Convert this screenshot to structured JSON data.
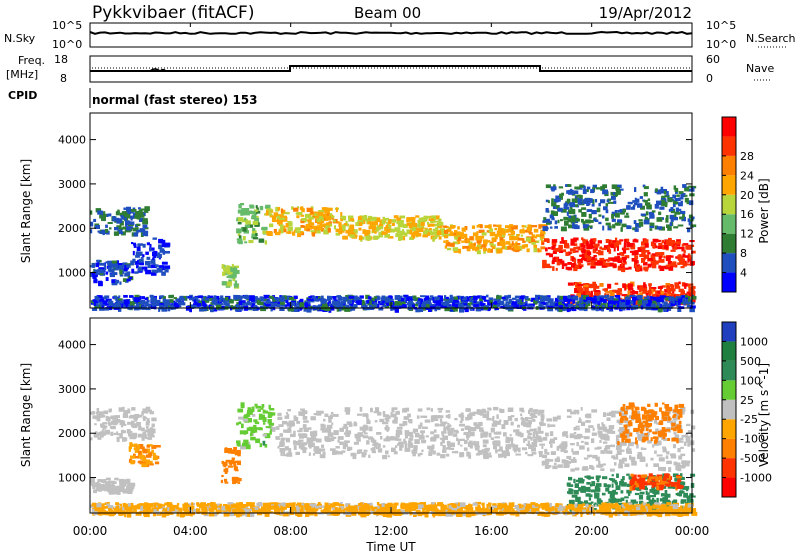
{
  "header": {
    "station": "Pykkvibaer (fitACF)",
    "beam": "Beam 00",
    "date": "19/Apr/2012"
  },
  "panels": {
    "noise": {
      "left_label": "N.Sky",
      "left_ticks": [
        "10^5",
        "10^0"
      ],
      "right_label": "N.Search",
      "right_ticks": [
        "10^5",
        "10^0"
      ]
    },
    "freq": {
      "left_label_1": "Freq.",
      "left_label_2": "[MHz]",
      "left_ticks": [
        "18",
        "8"
      ],
      "right_label": "Nave",
      "right_ticks": [
        "60",
        "0"
      ]
    },
    "cpid": {
      "label": "CPID",
      "text": "normal (fast stereo) 153"
    }
  },
  "chart_data": [
    {
      "type": "heatmap",
      "title": "",
      "xlabel": "Time UT",
      "ylabel": "Slant Range [km]",
      "x_ticks": [
        "00:00",
        "04:00",
        "08:00",
        "12:00",
        "16:00",
        "20:00",
        "00:00"
      ],
      "y_ticks": [
        "1000",
        "2000",
        "3000",
        "4000"
      ],
      "xlim": [
        0,
        24
      ],
      "ylim": [
        200,
        4600
      ],
      "colorbar": {
        "label": "Power [dB]",
        "ticks": [
          "4",
          "8",
          "12",
          "16",
          "20",
          "24",
          "28"
        ],
        "colors": [
          "#0000ff",
          "#1f4fbf",
          "#2e7d32",
          "#66bb6a",
          "#b8d63c",
          "#ffa500",
          "#ff7f00",
          "#ff3300",
          "#ff0000"
        ]
      },
      "bands": [
        {
          "t0": 0.0,
          "t1": 2.2,
          "r0": 1900,
          "r1": 2500,
          "value": 8
        },
        {
          "t0": 0.0,
          "t1": 1.6,
          "r0": 800,
          "r1": 1300,
          "value": 6
        },
        {
          "t0": 1.6,
          "t1": 3.0,
          "r0": 1000,
          "r1": 1800,
          "value": 5
        },
        {
          "t0": 5.2,
          "t1": 5.8,
          "r0": 700,
          "r1": 1200,
          "value": 14
        },
        {
          "t0": 5.8,
          "t1": 7.0,
          "r0": 1700,
          "r1": 2600,
          "value": 12
        },
        {
          "t0": 7.0,
          "t1": 10.0,
          "r0": 1900,
          "r1": 2500,
          "value": 18
        },
        {
          "t0": 10.0,
          "t1": 14.0,
          "r0": 1800,
          "r1": 2300,
          "value": 17
        },
        {
          "t0": 14.0,
          "t1": 18.0,
          "r0": 1500,
          "r1": 2100,
          "value": 19
        },
        {
          "t0": 18.0,
          "t1": 24.0,
          "r0": 1100,
          "r1": 1800,
          "value": 26
        },
        {
          "t0": 19.0,
          "t1": 24.0,
          "r0": 300,
          "r1": 800,
          "value": 25
        },
        {
          "t0": 18.0,
          "t1": 24.0,
          "r0": 2000,
          "r1": 3000,
          "value": 8
        },
        {
          "t0": 0.0,
          "t1": 24.0,
          "r0": 200,
          "r1": 500,
          "value": 6
        }
      ]
    },
    {
      "type": "heatmap",
      "title": "",
      "xlabel": "Time UT",
      "ylabel": "Slant Range [km]",
      "x_ticks": [
        "00:00",
        "04:00",
        "08:00",
        "12:00",
        "16:00",
        "20:00",
        "00:00"
      ],
      "y_ticks": [
        "1000",
        "2000",
        "3000",
        "4000"
      ],
      "xlim": [
        0,
        24
      ],
      "ylim": [
        200,
        4600
      ],
      "colorbar": {
        "label": "Velocity [m s^-1]",
        "ticks": [
          "1000",
          "500",
          "100",
          "25",
          "-25",
          "-100",
          "-500",
          "-1000"
        ],
        "colors": [
          "#1f3fbf",
          "#1f7f3f",
          "#2e8b57",
          "#66cc33",
          "#c0c0c0",
          "#ffa500",
          "#ff7f00",
          "#ff3300",
          "#ff0000"
        ]
      },
      "bands": [
        {
          "t0": 0.0,
          "t1": 2.5,
          "r0": 1900,
          "r1": 2600,
          "value": 0
        },
        {
          "t0": 0.0,
          "t1": 1.6,
          "r0": 700,
          "r1": 1000,
          "value": 0
        },
        {
          "t0": 1.5,
          "t1": 2.6,
          "r0": 1300,
          "r1": 1800,
          "value": -100
        },
        {
          "t0": 5.2,
          "t1": 5.9,
          "r0": 900,
          "r1": 1700,
          "value": -300
        },
        {
          "t0": 5.8,
          "t1": 7.2,
          "r0": 1700,
          "r1": 2700,
          "value": 60
        },
        {
          "t0": 7.2,
          "t1": 18.0,
          "r0": 1500,
          "r1": 2600,
          "value": 0
        },
        {
          "t0": 18.0,
          "t1": 24.0,
          "r0": 1200,
          "r1": 2600,
          "value": 0
        },
        {
          "t0": 21.0,
          "t1": 23.5,
          "r0": 1800,
          "r1": 2700,
          "value": -200
        },
        {
          "t0": 19.0,
          "t1": 24.0,
          "r0": 300,
          "r1": 1100,
          "value": 200
        },
        {
          "t0": 21.5,
          "t1": 23.5,
          "r0": 800,
          "r1": 1100,
          "value": -700
        },
        {
          "t0": 0.0,
          "t1": 24.0,
          "r0": 200,
          "r1": 450,
          "value": -50
        }
      ]
    }
  ]
}
